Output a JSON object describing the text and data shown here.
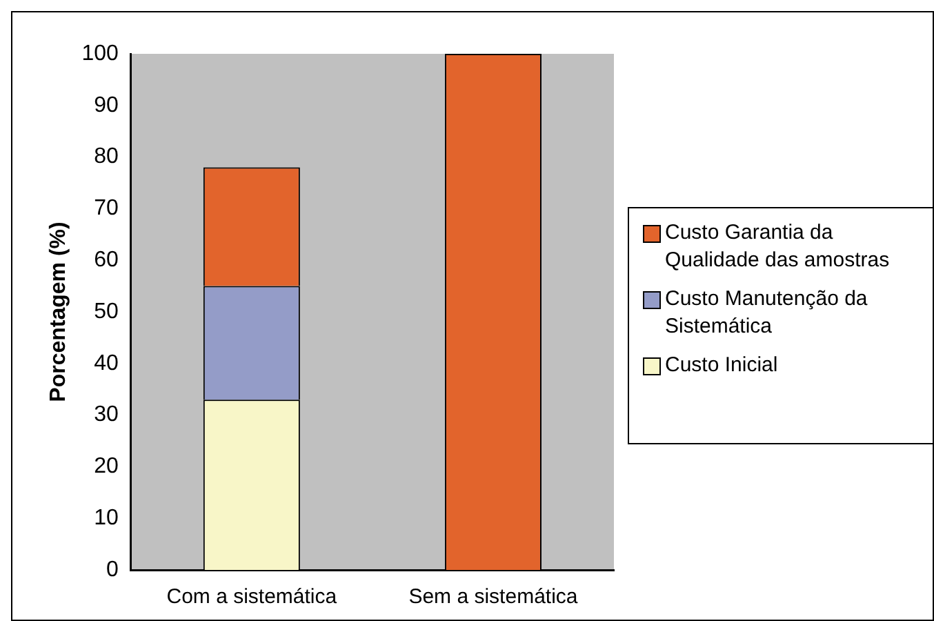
{
  "chart_data": {
    "type": "bar",
    "stacked": true,
    "ylabel": "Porcentagem (%)",
    "categories": [
      "Com a sistemática",
      "Sem a sistemática"
    ],
    "series": [
      {
        "name": "Custo Inicial",
        "color": "#f8f6c8",
        "values": [
          33,
          null
        ]
      },
      {
        "name": "Custo Manutenção da Sistemática",
        "color": "#949cc8",
        "values": [
          22,
          null
        ]
      },
      {
        "name": "Custo Garantia da Qualidade das amostras",
        "color": "#e2642c",
        "values": [
          23,
          100
        ]
      }
    ],
    "ylim": [
      0,
      100
    ],
    "yticks": [
      0,
      10,
      20,
      30,
      40,
      50,
      60,
      70,
      80,
      90,
      100
    ],
    "grid": false,
    "legend": "right"
  }
}
